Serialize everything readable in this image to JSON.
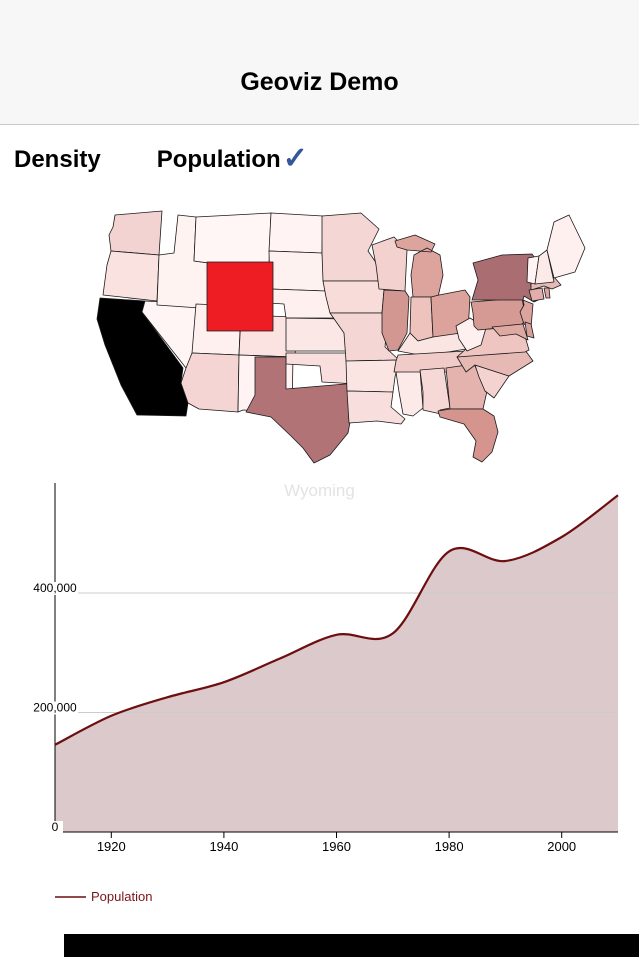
{
  "header": {
    "title": "Geoviz Demo"
  },
  "tabs": {
    "items": [
      {
        "label": "Density",
        "selected": false
      },
      {
        "label": "Population",
        "selected": true
      }
    ],
    "check_icon": "✓",
    "check_color": "#34569B"
  },
  "map": {
    "selected_state": "Wyoming",
    "selected_state_label_color": "#e3e3e3",
    "stroke_color": "#1a1a1a",
    "states": [
      {
        "name": "Washington",
        "color": "#f2d3d1"
      },
      {
        "name": "Oregon",
        "color": "#fae2e0"
      },
      {
        "name": "California",
        "color": "#000000"
      },
      {
        "name": "Nevada",
        "color": "#fff5f4"
      },
      {
        "name": "Idaho",
        "color": "#fff3f2"
      },
      {
        "name": "Montana",
        "color": "#fff6f5"
      },
      {
        "name": "Utah",
        "color": "#fdf0ef"
      },
      {
        "name": "Arizona",
        "color": "#f4d5d3"
      },
      {
        "name": "Colorado",
        "color": "#fbe3e1"
      },
      {
        "name": "New Mexico",
        "color": "#fff4f3"
      },
      {
        "name": "North Dakota",
        "color": "#fff4f3"
      },
      {
        "name": "South Dakota",
        "color": "#fef2f1"
      },
      {
        "name": "Nebraska",
        "color": "#fdf0ef"
      },
      {
        "name": "Kansas",
        "color": "#fbe7e5"
      },
      {
        "name": "Oklahoma",
        "color": "#f8dedc"
      },
      {
        "name": "Texas",
        "color": "#b27377"
      },
      {
        "name": "Minnesota",
        "color": "#f4d6d4"
      },
      {
        "name": "Iowa",
        "color": "#f7dcda"
      },
      {
        "name": "Missouri",
        "color": "#f4d7d5"
      },
      {
        "name": "Arkansas",
        "color": "#fbe5e3"
      },
      {
        "name": "Louisiana",
        "color": "#f8dedc"
      },
      {
        "name": "Wisconsin",
        "color": "#f2d1cf"
      },
      {
        "name": "Illinois",
        "color": "#d29791"
      },
      {
        "name": "Mississippi",
        "color": "#fceae8"
      },
      {
        "name": "Michigan",
        "color": "#dda49e"
      },
      {
        "name": "Indiana",
        "color": "#eec2bd"
      },
      {
        "name": "Ohio",
        "color": "#dca29c"
      },
      {
        "name": "Kentucky",
        "color": "#fbe5e3"
      },
      {
        "name": "Tennessee",
        "color": "#f0cbc7"
      },
      {
        "name": "Alabama",
        "color": "#f6d9d7"
      },
      {
        "name": "Georgia",
        "color": "#e5b3ae"
      },
      {
        "name": "Florida",
        "color": "#d6948e"
      },
      {
        "name": "South Carolina",
        "color": "#f3d2d0"
      },
      {
        "name": "North Carolina",
        "color": "#e7b9b4"
      },
      {
        "name": "Virginia",
        "color": "#eec5c0"
      },
      {
        "name": "West Virginia",
        "color": "#fdf0ef"
      },
      {
        "name": "Pennsylvania",
        "color": "#d69a94"
      },
      {
        "name": "New York",
        "color": "#aa6e72"
      },
      {
        "name": "New Jersey",
        "color": "#dda49e"
      },
      {
        "name": "Maryland",
        "color": "#e0a8a3"
      },
      {
        "name": "Delaware",
        "color": "#d8a09a"
      },
      {
        "name": "Connecticut",
        "color": "#e2aeaa"
      },
      {
        "name": "Rhode Island",
        "color": "#dda49e"
      },
      {
        "name": "Massachusetts",
        "color": "#e7b9b4"
      },
      {
        "name": "Vermont",
        "color": "#fff4f3"
      },
      {
        "name": "New Hampshire",
        "color": "#fbeae8"
      },
      {
        "name": "Maine",
        "color": "#fdf0ef"
      },
      {
        "name": "Wyoming",
        "color": "#ee1c23"
      }
    ]
  },
  "chart_data": {
    "type": "area",
    "title": "",
    "xlabel": "",
    "ylabel": "",
    "x": [
      1910,
      1920,
      1930,
      1940,
      1950,
      1960,
      1970,
      1980,
      1990,
      2000,
      2010
    ],
    "series": [
      {
        "name": "Population",
        "values": [
          145965,
          194402,
          225565,
          250742,
          290529,
          330066,
          332416,
          469557,
          453588,
          493782,
          563626
        ]
      }
    ],
    "xlim": [
      1910,
      2010
    ],
    "ylim": [
      0,
      585000
    ],
    "x_ticks": [
      {
        "value": 1920,
        "label": "1920"
      },
      {
        "value": 1940,
        "label": "1940"
      },
      {
        "value": 1960,
        "label": "1960"
      },
      {
        "value": 1980,
        "label": "1980"
      },
      {
        "value": 2000,
        "label": "2000"
      }
    ],
    "y_ticks": [
      {
        "value": 0,
        "label": "0"
      },
      {
        "value": 200000,
        "label": "200,000"
      },
      {
        "value": 400000,
        "label": "400,000"
      }
    ],
    "grid": true,
    "line_color": "#6D0E10",
    "fill_color": "#dbc9cb",
    "grid_color": "#cccccc",
    "axis_color": "#000000",
    "legend": {
      "label": "Population",
      "position": "bottom-left",
      "text_color": "#7B1416"
    }
  }
}
